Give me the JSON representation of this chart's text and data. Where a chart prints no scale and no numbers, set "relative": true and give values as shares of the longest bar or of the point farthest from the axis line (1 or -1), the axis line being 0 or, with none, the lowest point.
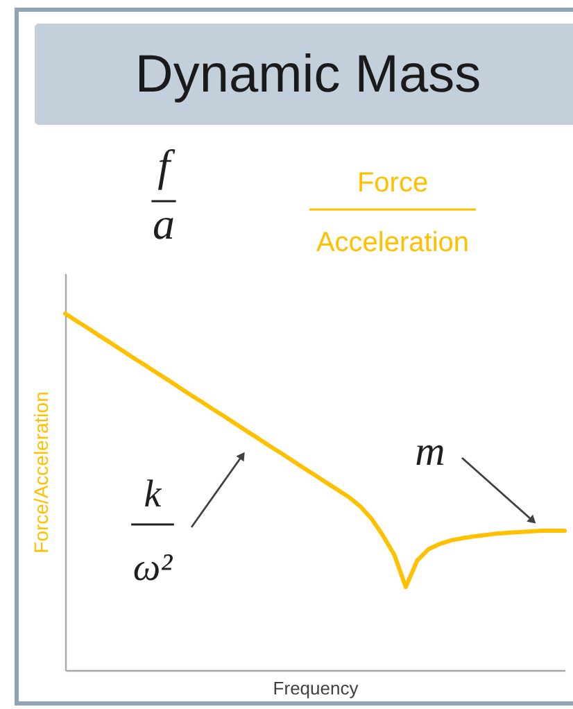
{
  "chart_data": {
    "type": "line",
    "title": "Dynamic Mass",
    "xlabel": "Frequency",
    "ylabel": "Force/Acceleration",
    "relative": true,
    "categories": [
      null,
      null,
      null,
      null,
      null,
      null,
      null,
      null,
      null,
      null,
      null,
      null,
      null,
      null,
      null,
      null,
      null,
      null,
      null,
      null,
      null,
      null,
      null,
      null,
      null,
      null,
      null,
      null,
      null,
      null,
      null,
      null,
      null,
      null,
      null,
      null,
      null,
      null,
      null,
      null,
      null,
      null,
      null,
      null,
      null
    ],
    "series": [
      {
        "color": "#ffc000",
        "values": [
          1.0,
          0.979,
          0.959,
          0.938,
          0.918,
          0.897,
          0.876,
          0.856,
          0.835,
          0.815,
          0.794,
          0.773,
          0.753,
          0.732,
          0.712,
          0.691,
          0.67,
          0.65,
          0.629,
          0.609,
          0.588,
          0.567,
          0.547,
          0.526,
          0.506,
          0.485,
          0.459,
          0.424,
          0.377,
          0.323,
          0.233,
          0.307,
          0.339,
          0.354,
          0.364,
          0.37,
          0.375,
          0.379,
          0.383,
          0.385,
          0.387,
          0.389,
          0.391,
          0.391,
          0.391
        ]
      }
    ],
    "annotations": [
      "f",
      "a",
      "Force",
      "Acceleration",
      "k",
      "ω²",
      "m"
    ]
  }
}
